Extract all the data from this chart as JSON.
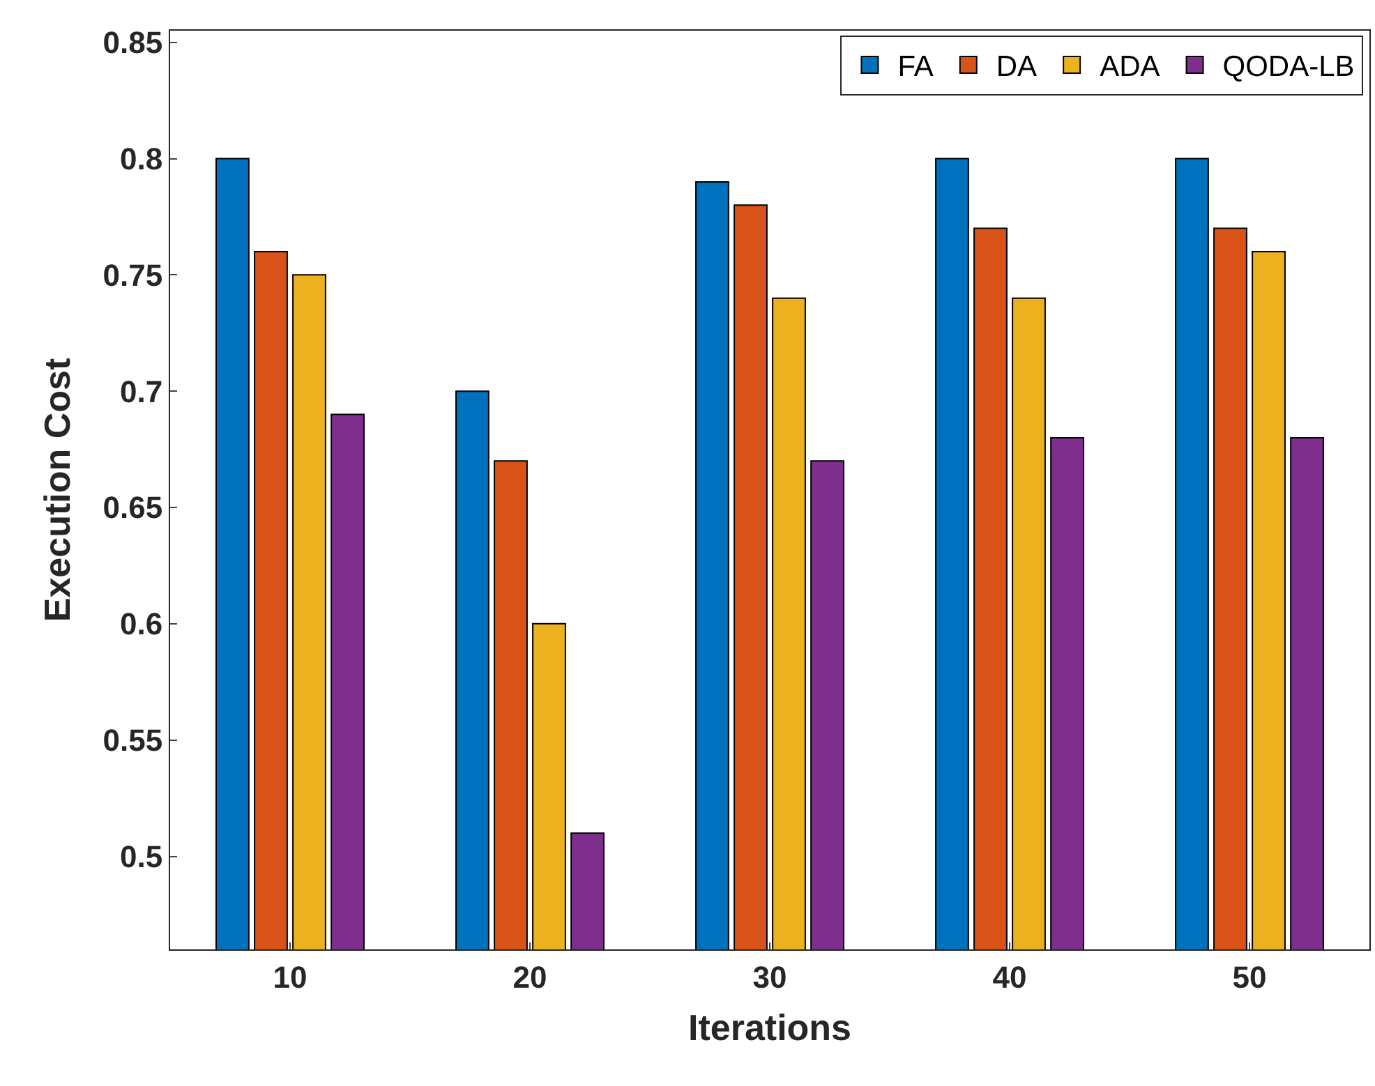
{
  "chart_data": {
    "type": "bar",
    "xlabel": "Iterations",
    "ylabel": "Execution Cost",
    "categories": [
      "10",
      "20",
      "30",
      "40",
      "50"
    ],
    "series": [
      {
        "name": "FA",
        "color": "#0072bd",
        "values": [
          0.8,
          0.7,
          0.79,
          0.8,
          0.8
        ]
      },
      {
        "name": "DA",
        "color": "#d95319",
        "values": [
          0.76,
          0.67,
          0.78,
          0.77,
          0.77
        ]
      },
      {
        "name": "ADA",
        "color": "#edb120",
        "values": [
          0.75,
          0.6,
          0.74,
          0.74,
          0.76
        ]
      },
      {
        "name": "QODA-LB",
        "color": "#7e2f8e",
        "values": [
          0.69,
          0.51,
          0.67,
          0.68,
          0.68
        ]
      }
    ],
    "ylim": [
      0.46,
      0.855
    ],
    "yticks": [
      0.5,
      0.55,
      0.6,
      0.65,
      0.7,
      0.75,
      0.8,
      0.85
    ],
    "legend": "top right"
  }
}
